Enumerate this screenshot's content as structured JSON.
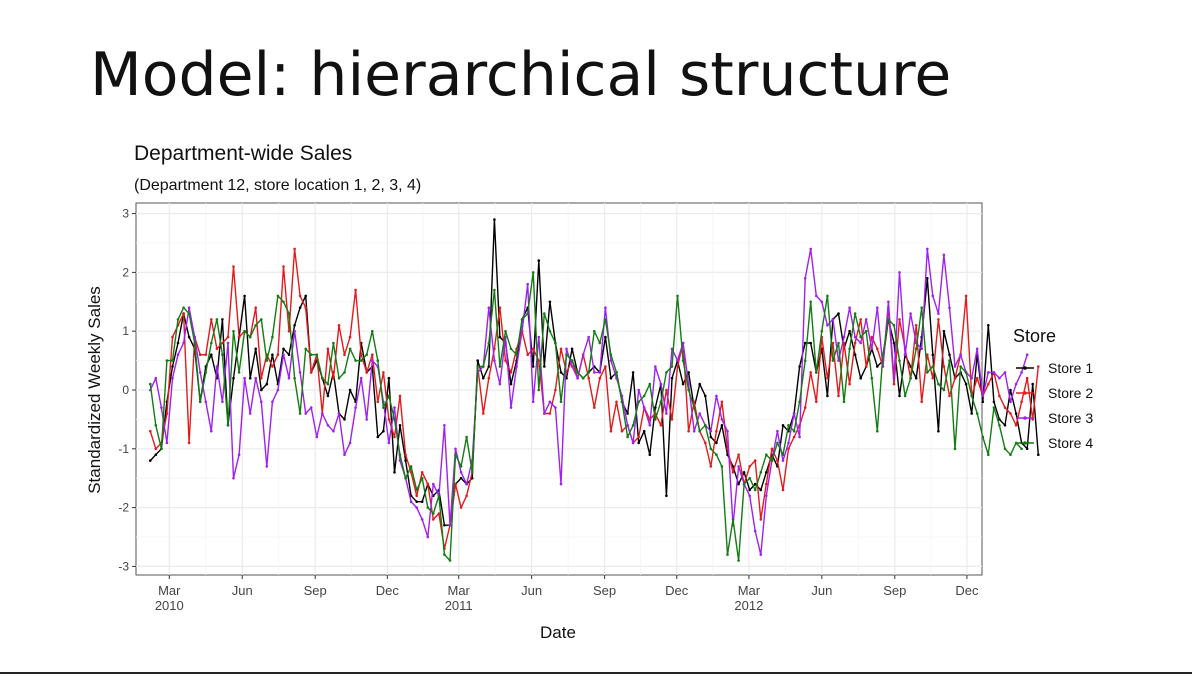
{
  "slide": {
    "title": "Model: hierarchical structure"
  },
  "chart_data": {
    "type": "line",
    "title": "Department-wide Sales",
    "subtitle": "(Department 12, store location 1, 2, 3, 4)",
    "xlabel": "Date",
    "ylabel": "Standardized Weekly Sales",
    "ylim": [
      -3,
      3
    ],
    "y_ticks": [
      "-3",
      "-2",
      "-1",
      "0",
      "1",
      "2",
      "3"
    ],
    "x_ticks": [
      {
        "label": "Mar",
        "sub": "2010",
        "date": "2010-03-01"
      },
      {
        "label": "Jun",
        "sub": "",
        "date": "2010-06-01"
      },
      {
        "label": "Sep",
        "sub": "",
        "date": "2010-09-01"
      },
      {
        "label": "Dec",
        "sub": "",
        "date": "2010-12-01"
      },
      {
        "label": "Mar",
        "sub": "2011",
        "date": "2011-03-01"
      },
      {
        "label": "Jun",
        "sub": "",
        "date": "2011-06-01"
      },
      {
        "label": "Sep",
        "sub": "",
        "date": "2011-09-01"
      },
      {
        "label": "Dec",
        "sub": "",
        "date": "2011-12-01"
      },
      {
        "label": "Mar",
        "sub": "2012",
        "date": "2012-03-01"
      },
      {
        "label": "Jun",
        "sub": "",
        "date": "2012-06-01"
      },
      {
        "label": "Sep",
        "sub": "",
        "date": "2012-09-01"
      },
      {
        "label": "Dec",
        "sub": "",
        "date": "2012-12-01"
      }
    ],
    "xlim": [
      "2010-01-18",
      "2012-12-20"
    ],
    "grid": true,
    "legend": {
      "title": "Store",
      "position": "right"
    },
    "start_date": "2010-02-05",
    "interval_days": 7,
    "series": [
      {
        "name": "Store 1",
        "color": "#000000",
        "values": [
          -1.2,
          -1.1,
          -1.0,
          -0.2,
          0.4,
          0.8,
          1.3,
          0.9,
          0.7,
          -0.2,
          0.4,
          0.6,
          0.2,
          1.2,
          -0.6,
          0.2,
          0.9,
          1.6,
          0.2,
          0.7,
          0.0,
          0.1,
          0.6,
          0.1,
          0.7,
          0.6,
          1.1,
          1.4,
          1.6,
          0.3,
          0.5,
          0.2,
          -0.1,
          0.3,
          -0.4,
          -0.5,
          0.0,
          -0.2,
          0.8,
          0.3,
          0.4,
          -0.8,
          -0.7,
          0.2,
          -1.4,
          -0.6,
          -1.2,
          -1.8,
          -1.9,
          -1.9,
          -1.6,
          -1.8,
          -1.7,
          -2.3,
          -2.3,
          -1.6,
          -1.5,
          -1.6,
          -1.5,
          0.5,
          0.2,
          0.4,
          2.9,
          0.9,
          0.8,
          0.1,
          0.5,
          1.2,
          1.4,
          0.4,
          2.2,
          0.4,
          1.5,
          0.8,
          0.3,
          0.2,
          0.7,
          0.3,
          0.2,
          0.3,
          0.4,
          0.3,
          0.9,
          0.2,
          0.3,
          -0.2,
          -0.4,
          0.3,
          -0.9,
          -0.7,
          -1.1,
          -0.3,
          0.1,
          -1.8,
          0.2,
          0.5,
          0.1,
          0.3,
          -0.3,
          0.1,
          -0.1,
          -0.8,
          -0.9,
          -0.6,
          -1.1,
          -1.3,
          -1.6,
          -1.4,
          -1.7,
          -1.6,
          -1.7,
          -1.4,
          -1.1,
          -1.3,
          -0.6,
          -0.7,
          -0.4,
          0.4,
          0.8,
          0.8,
          0.3,
          0.7,
          -0.1,
          1.2,
          1.3,
          0.7,
          1.0,
          0.6,
          0.2,
          0.4,
          0.7,
          0.4,
          0.5,
          1.2,
          0.8,
          -0.1,
          0.6,
          0.4,
          0.2,
          0.9,
          1.9,
          0.6,
          -0.7,
          1.0,
          0.6,
          0.2,
          0.3,
          0.1,
          -0.4,
          0.6,
          -0.2,
          1.1,
          -0.2,
          -0.5,
          -0.6,
          0.0,
          -0.4,
          -0.9,
          -1.0,
          0.1,
          -1.1
        ]
      },
      {
        "name": "Store 2",
        "color": "#e41a1c",
        "values": [
          -0.7,
          -1.0,
          -0.9,
          -0.4,
          0.9,
          1.1,
          1.3,
          -0.9,
          0.9,
          0.6,
          0.6,
          1.2,
          0.7,
          0.8,
          0.9,
          2.1,
          0.9,
          1.0,
          0.9,
          1.4,
          0.2,
          0.6,
          0.4,
          0.6,
          2.1,
          1.0,
          2.4,
          1.6,
          1.4,
          0.3,
          0.6,
          -0.4,
          0.7,
          0.2,
          1.1,
          0.6,
          0.9,
          1.7,
          0.6,
          0.3,
          0.6,
          -0.2,
          0.3,
          -0.5,
          -0.8,
          -0.1,
          -1.1,
          -1.4,
          -1.8,
          -1.4,
          -1.6,
          -2.2,
          -2.1,
          -2.7,
          -2.3,
          -1.6,
          -2.0,
          -1.8,
          -1.4,
          0.4,
          -0.4,
          0.2,
          0.7,
          1.4,
          0.5,
          0.3,
          0.7,
          1.0,
          0.6,
          0.7,
          0.5,
          -0.4,
          -0.4,
          0.0,
          0.7,
          0.3,
          0.5,
          0.2,
          0.6,
          0.2,
          -0.3,
          0.2,
          0.4,
          -0.7,
          -0.2,
          -0.7,
          -0.6,
          -0.9,
          -0.8,
          -0.3,
          -0.5,
          -0.4,
          -0.6,
          0.0,
          -0.5,
          0.4,
          0.8,
          -0.7,
          -0.2,
          -0.7,
          -0.9,
          -1.3,
          -0.7,
          -0.2,
          -1.0,
          -1.4,
          -1.1,
          -1.6,
          -1.3,
          -1.2,
          -2.2,
          -1.6,
          -1.0,
          -1.2,
          -1.7,
          -1.0,
          -0.8,
          -0.6,
          -0.3,
          0.3,
          -0.2,
          0.9,
          0.2,
          0.8,
          -0.1,
          0.8,
          0.1,
          0.8,
          1.2,
          0.4,
          0.9,
          0.7,
          0.4,
          1.4,
          0.1,
          1.2,
          0.7,
          0.2,
          1.1,
          -0.2,
          0.6,
          0.2,
          1.2,
          0.4,
          -0.1,
          0.2,
          0.6,
          1.6,
          -0.1,
          0.2,
          -0.1,
          0.1,
          0.3,
          -0.1,
          -0.3,
          -0.4,
          -0.6,
          -0.2,
          0.2,
          -0.5,
          0.4
        ]
      },
      {
        "name": "Store 3",
        "color": "#a020f0",
        "values": [
          0.0,
          0.2,
          -0.3,
          -0.9,
          0.2,
          0.6,
          0.8,
          1.4,
          0.9,
          0.3,
          -0.2,
          -0.7,
          0.4,
          -0.2,
          0.8,
          -1.5,
          -1.1,
          0.2,
          -0.4,
          0.2,
          -0.2,
          -1.3,
          -0.2,
          0.0,
          0.6,
          0.2,
          1.0,
          0.3,
          -0.4,
          -0.3,
          -0.8,
          -0.4,
          -0.6,
          -0.7,
          -0.4,
          -1.1,
          -0.9,
          -0.3,
          0.2,
          -0.5,
          0.5,
          0.4,
          -0.2,
          -0.9,
          -0.3,
          -1.2,
          -1.5,
          -1.9,
          -2.0,
          -2.2,
          -2.5,
          -1.6,
          -1.8,
          -0.6,
          -2.3,
          -1.0,
          -1.4,
          -1.6,
          -1.2,
          0.3,
          0.4,
          1.4,
          0.5,
          0.1,
          0.9,
          -0.3,
          0.4,
          1.0,
          1.8,
          -0.2,
          0.9,
          -0.4,
          -0.2,
          -0.3,
          -1.6,
          0.7,
          0.4,
          0.2,
          0.6,
          0.9,
          0.3,
          0.3,
          1.4,
          0.5,
          0.2,
          -0.1,
          -0.6,
          -0.9,
          0.0,
          -0.3,
          -0.6,
          0.4,
          0.1,
          -0.4,
          0.7,
          0.5,
          0.8,
          0.1,
          -0.7,
          -0.4,
          -0.6,
          -0.7,
          -0.1,
          -0.5,
          -0.7,
          -2.3,
          -1.3,
          -1.6,
          -1.8,
          -2.4,
          -2.8,
          -1.8,
          -1.2,
          -0.7,
          -1.2,
          -0.9,
          -0.4,
          -0.8,
          1.9,
          2.4,
          1.6,
          1.5,
          1.1,
          1.2,
          0.5,
          0.9,
          1.4,
          0.9,
          0.8,
          1.2,
          0.7,
          1.4,
          0.4,
          1.5,
          0.2,
          2.0,
          0.6,
          1.3,
          0.8,
          0.7,
          2.4,
          1.6,
          1.3,
          2.3,
          1.4,
          0.4,
          0.6,
          0.3,
          0.2,
          0.7,
          -0.1,
          0.3,
          0.3,
          0.2,
          0.3,
          -0.2,
          0.1,
          0.3,
          0.6
        ]
      },
      {
        "name": "Store 4",
        "color": "#137c13",
        "values": [
          0.1,
          -0.6,
          -1.0,
          0.5,
          0.5,
          1.2,
          1.4,
          1.3,
          0.8,
          -0.2,
          0.3,
          0.8,
          1.2,
          0.6,
          -0.6,
          1.0,
          0.3,
          1.0,
          0.9,
          1.1,
          1.2,
          0.5,
          0.9,
          1.6,
          1.5,
          1.3,
          0.2,
          -0.4,
          0.7,
          0.6,
          0.6,
          0.2,
          0.1,
          0.8,
          0.2,
          0.3,
          0.7,
          0.5,
          0.5,
          0.6,
          1.0,
          0.5,
          -0.3,
          -0.1,
          -0.5,
          -1.1,
          -1.5,
          -1.3,
          -1.7,
          -1.5,
          -2.0,
          -2.1,
          -1.8,
          -2.8,
          -2.9,
          -1.1,
          -1.3,
          -0.8,
          -1.4,
          0.4,
          0.4,
          0.8,
          1.7,
          0.4,
          1.0,
          0.7,
          0.6,
          1.2,
          1.3,
          2.0,
          0.0,
          1.3,
          1.0,
          0.8,
          -0.2,
          0.6,
          0.5,
          0.3,
          0.2,
          0.3,
          1.0,
          0.8,
          1.2,
          0.6,
          0.3,
          -0.2,
          -0.8,
          -0.6,
          -0.2,
          -0.1,
          0.1,
          -0.5,
          -0.2,
          0.3,
          0.4,
          1.6,
          0.5,
          0.0,
          -0.3,
          -0.7,
          -0.6,
          -1.0,
          -1.1,
          -1.3,
          -2.8,
          -2.2,
          -2.9,
          -1.6,
          -1.5,
          -1.7,
          -1.4,
          -1.1,
          -1.2,
          -0.9,
          -1.1,
          -0.6,
          -0.7,
          -0.2,
          0.5,
          1.5,
          0.3,
          1.0,
          1.6,
          0.5,
          0.8,
          -0.2,
          0.7,
          1.3,
          0.9,
          1.0,
          0.2,
          -0.7,
          0.6,
          1.2,
          1.1,
          0.5,
          -0.1,
          0.2,
          0.7,
          1.4,
          0.3,
          0.4,
          0.1,
          0.0,
          0.5,
          -1.0,
          0.4,
          0.3,
          -0.1,
          -0.4,
          -0.8,
          -1.1,
          -0.3,
          -0.6,
          -1.0,
          -1.1,
          -0.9,
          -1.0
        ]
      }
    ]
  }
}
